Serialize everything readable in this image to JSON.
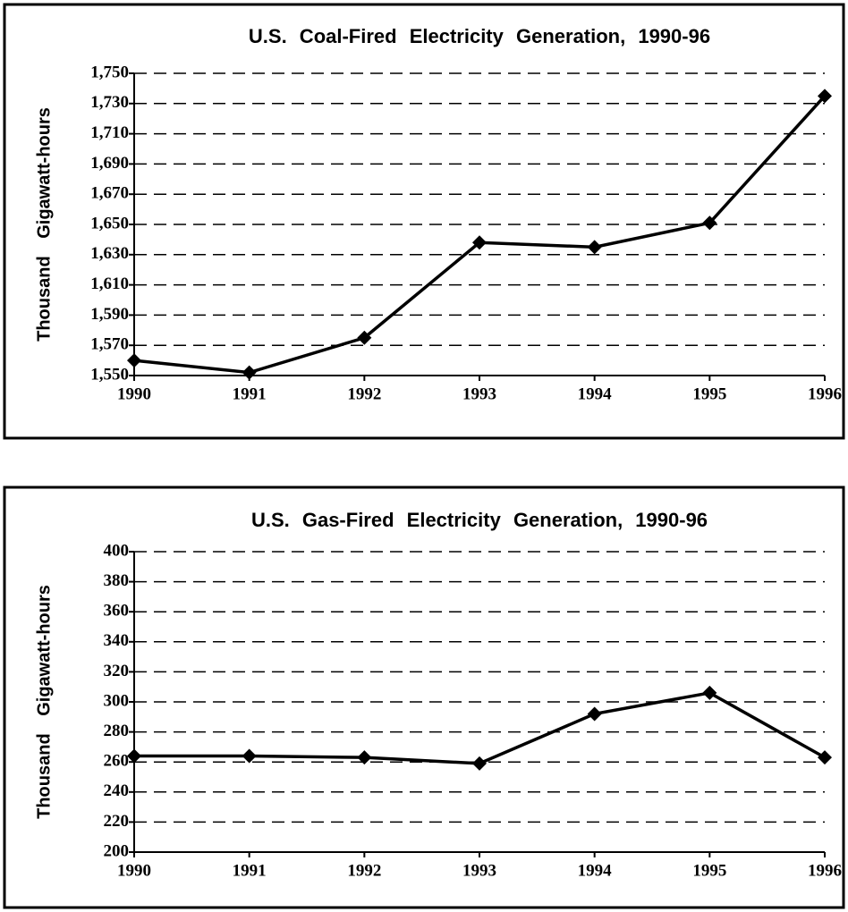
{
  "chart_data": [
    {
      "type": "line",
      "title": "U.S. Coal-Fired Electricity Generation, 1990-96",
      "y_label": "Thousand Gigawatt-hours",
      "x": [
        1990,
        1991,
        1992,
        1993,
        1994,
        1995,
        1996
      ],
      "series": [
        {
          "name": "Coal-Fired",
          "color": "#000000",
          "values": [
            1560,
            1552,
            1575,
            1638,
            1635,
            1651,
            1735
          ]
        }
      ],
      "xlim": [
        1990,
        1996
      ],
      "xticks": [
        1990,
        1991,
        1992,
        1993,
        1994,
        1995,
        1996
      ],
      "ylim": [
        1550,
        1750
      ],
      "yticks": [
        {
          "value": 1550,
          "label": "1,550"
        },
        {
          "value": 1570,
          "label": "1,570"
        },
        {
          "value": 1590,
          "label": "1,590"
        },
        {
          "value": 1610,
          "label": "1,610"
        },
        {
          "value": 1630,
          "label": "1,630"
        },
        {
          "value": 1650,
          "label": "1,650"
        },
        {
          "value": 1670,
          "label": "1,670"
        },
        {
          "value": 1690,
          "label": "1,690"
        },
        {
          "value": 1710,
          "label": "1,710"
        },
        {
          "value": 1730,
          "label": "1,730"
        },
        {
          "value": 1750,
          "label": "1,750"
        }
      ],
      "grid": true
    },
    {
      "type": "line",
      "title": "U.S. Gas-Fired Electricity Generation, 1990-96",
      "y_label": "Thousand Gigawatt-hours",
      "x": [
        1990,
        1991,
        1992,
        1993,
        1994,
        1995,
        1996
      ],
      "series": [
        {
          "name": "Gas-Fired",
          "color": "#000000",
          "values": [
            264,
            264,
            263,
            259,
            292,
            306,
            263
          ]
        }
      ],
      "xlim": [
        1990,
        1996
      ],
      "xticks": [
        1990,
        1991,
        1992,
        1993,
        1994,
        1995,
        1996
      ],
      "ylim": [
        200,
        400
      ],
      "yticks": [
        200,
        220,
        240,
        260,
        280,
        300,
        320,
        340,
        360,
        380,
        400
      ],
      "grid": true
    }
  ]
}
